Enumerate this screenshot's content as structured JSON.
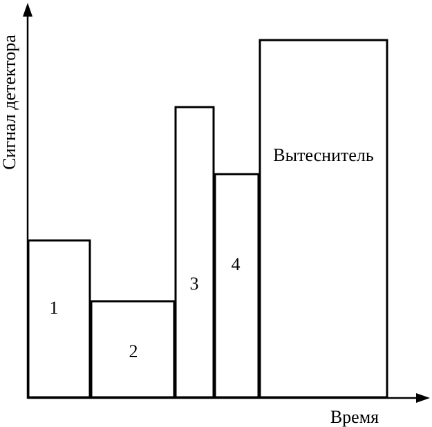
{
  "axes": {
    "y_label": "Сигнал детектора",
    "x_label": "Время"
  },
  "zones": [
    {
      "label": "1"
    },
    {
      "label": "2"
    },
    {
      "label": "3"
    },
    {
      "label": "4"
    },
    {
      "label": "Вытеснитель"
    }
  ]
}
